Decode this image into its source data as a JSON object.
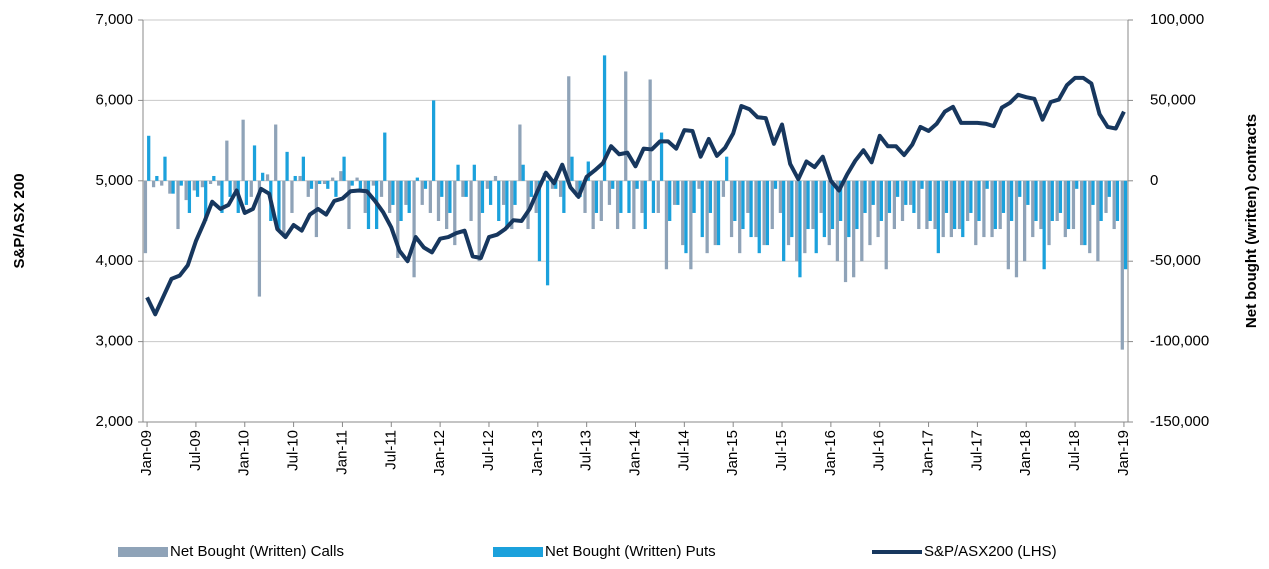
{
  "chart_data": {
    "type": "bar-line",
    "y_label": "S&P/ASX 200",
    "y2_label": "Net bought (written) contracts",
    "categories": [
      "Jan-09",
      null,
      null,
      null,
      null,
      null,
      "Jul-09",
      null,
      null,
      null,
      null,
      null,
      "Jan-10",
      null,
      null,
      null,
      null,
      null,
      "Jul-10",
      null,
      null,
      null,
      null,
      null,
      "Jan-11",
      null,
      null,
      null,
      null,
      null,
      "Jul-11",
      null,
      null,
      null,
      null,
      null,
      "Jan-12",
      null,
      null,
      null,
      null,
      null,
      "Jul-12",
      null,
      null,
      null,
      null,
      null,
      "Jan-13",
      null,
      null,
      null,
      null,
      null,
      "Jul-13",
      null,
      null,
      null,
      null,
      null,
      "Jan-14",
      null,
      null,
      null,
      null,
      null,
      "Jul-14",
      null,
      null,
      null,
      null,
      null,
      "Jan-15",
      null,
      null,
      null,
      null,
      null,
      "Jul-15",
      null,
      null,
      null,
      null,
      null,
      "Jan-16",
      null,
      null,
      null,
      null,
      null,
      "Jul-16",
      null,
      null,
      null,
      null,
      null,
      "Jan-17",
      null,
      null,
      null,
      null,
      null,
      "Jul-17",
      null,
      null,
      null,
      null,
      null,
      "Jan-18",
      null,
      null,
      null,
      null,
      null,
      "Jul-18",
      null,
      null,
      null,
      null,
      null,
      "Jan-19"
    ],
    "series": [
      {
        "name": "Net Bought (Written) Calls",
        "color": "#8fa3b8",
        "kind": "bar",
        "axis": "y2",
        "values": [
          -45000,
          -4000,
          -3000,
          -8000,
          -30000,
          -12000,
          -6000,
          -4000,
          -2000,
          -3000,
          25000,
          -6000,
          38000,
          -10000,
          -72000,
          4000,
          35000,
          -35000,
          -20000,
          3000,
          -10000,
          -35000,
          -2000,
          2000,
          6000,
          -30000,
          2000,
          -20000,
          -3000,
          -10000,
          -20000,
          -48000,
          -15000,
          -60000,
          -15000,
          -20000,
          -25000,
          -30000,
          -40000,
          -10000,
          -25000,
          -50000,
          -5000,
          3000,
          -15000,
          -30000,
          35000,
          -30000,
          -20000,
          5000,
          -5000,
          -10000,
          65000,
          -10000,
          -20000,
          -30000,
          -25000,
          -15000,
          -30000,
          68000,
          -30000,
          -20000,
          63000,
          -20000,
          -55000,
          -15000,
          -40000,
          -55000,
          -5000,
          -45000,
          -40000,
          -10000,
          -35000,
          -45000,
          -20000,
          -35000,
          -40000,
          -30000,
          -20000,
          -40000,
          -50000,
          -45000,
          -30000,
          -20000,
          -40000,
          -50000,
          -63000,
          -60000,
          -50000,
          -40000,
          -35000,
          -55000,
          -30000,
          -25000,
          -15000,
          -30000,
          -30000,
          -30000,
          -35000,
          -35000,
          -30000,
          -25000,
          -40000,
          -35000,
          -35000,
          -30000,
          -55000,
          -60000,
          -50000,
          -35000,
          -30000,
          -40000,
          -25000,
          -35000,
          -30000,
          -40000,
          -45000,
          -50000,
          -20000,
          -30000,
          -105000
        ]
      },
      {
        "name": "Net Bought (Written) Puts",
        "color": "#1ba1dc",
        "kind": "bar",
        "axis": "y2",
        "values": [
          28000,
          3000,
          15000,
          -8000,
          -3000,
          -20000,
          -10000,
          -25000,
          3000,
          -20000,
          -10000,
          -20000,
          -15000,
          22000,
          5000,
          -25000,
          -30000,
          18000,
          3000,
          15000,
          -5000,
          -2000,
          -5000,
          -10000,
          15000,
          -3000,
          -5000,
          -30000,
          -30000,
          30000,
          -15000,
          -25000,
          -20000,
          2000,
          -5000,
          50000,
          -10000,
          -20000,
          10000,
          -10000,
          10000,
          -20000,
          -15000,
          -25000,
          -30000,
          -15000,
          10000,
          -10000,
          -50000,
          -65000,
          -5000,
          -20000,
          15000,
          -10000,
          12000,
          -20000,
          78000,
          -5000,
          -20000,
          -20000,
          -5000,
          -30000,
          -20000,
          30000,
          -25000,
          -15000,
          -45000,
          -20000,
          -35000,
          -20000,
          -40000,
          15000,
          -25000,
          -30000,
          -35000,
          -45000,
          -40000,
          -5000,
          -50000,
          -35000,
          -60000,
          -30000,
          -45000,
          -35000,
          -30000,
          -25000,
          -35000,
          -30000,
          -20000,
          -15000,
          -25000,
          -20000,
          -10000,
          -15000,
          -20000,
          -5000,
          -25000,
          -45000,
          -20000,
          -30000,
          -35000,
          -20000,
          -25000,
          -5000,
          -30000,
          -20000,
          -25000,
          -10000,
          -15000,
          -25000,
          -55000,
          -25000,
          -20000,
          -30000,
          -5000,
          -40000,
          -15000,
          -25000,
          -10000,
          -25000,
          -55000
        ]
      },
      {
        "name": "S&P/ASX200 (LHS)",
        "color": "#17375e",
        "kind": "line",
        "axis": "y",
        "values": [
          3550,
          3340,
          3560,
          3780,
          3820,
          3950,
          4250,
          4480,
          4740,
          4650,
          4700,
          4880,
          4600,
          4650,
          4900,
          4840,
          4400,
          4300,
          4450,
          4380,
          4580,
          4650,
          4580,
          4750,
          4780,
          4870,
          4880,
          4870,
          4750,
          4610,
          4420,
          4130,
          4000,
          4300,
          4170,
          4110,
          4280,
          4300,
          4350,
          4380,
          4060,
          4040,
          4300,
          4330,
          4400,
          4510,
          4500,
          4650,
          4880,
          5100,
          4970,
          5200,
          4920,
          4800,
          5050,
          5130,
          5220,
          5430,
          5330,
          5350,
          5180,
          5400,
          5390,
          5490,
          5490,
          5400,
          5630,
          5620,
          5300,
          5520,
          5310,
          5410,
          5590,
          5930,
          5890,
          5790,
          5780,
          5460,
          5700,
          5210,
          5020,
          5240,
          5170,
          5300,
          5000,
          4880,
          5080,
          5250,
          5380,
          5230,
          5560,
          5430,
          5430,
          5320,
          5450,
          5670,
          5620,
          5710,
          5860,
          5920,
          5720,
          5720,
          5720,
          5710,
          5680,
          5910,
          5970,
          6070,
          6040,
          6020,
          5760,
          5980,
          6010,
          6190,
          6280,
          6280,
          6210,
          5830,
          5670,
          5650,
          5860
        ]
      }
    ],
    "ylim": [
      2000,
      7000
    ],
    "yticks": [
      {
        "value": 2000,
        "label": "2,000"
      },
      {
        "value": 3000,
        "label": "3,000"
      },
      {
        "value": 4000,
        "label": "4,000"
      },
      {
        "value": 5000,
        "label": "5,000"
      },
      {
        "value": 6000,
        "label": "6,000"
      },
      {
        "value": 7000,
        "label": "7,000"
      }
    ],
    "y2lim": [
      -150000,
      100000
    ],
    "y2ticks": [
      {
        "value": -150000,
        "label": "-150,000"
      },
      {
        "value": -100000,
        "label": "-100,000"
      },
      {
        "value": -50000,
        "label": "-50,000"
      },
      0,
      {
        "value": 50000,
        "label": "50,000"
      },
      {
        "value": 100000,
        "label": "100,000"
      }
    ],
    "grid": true
  }
}
